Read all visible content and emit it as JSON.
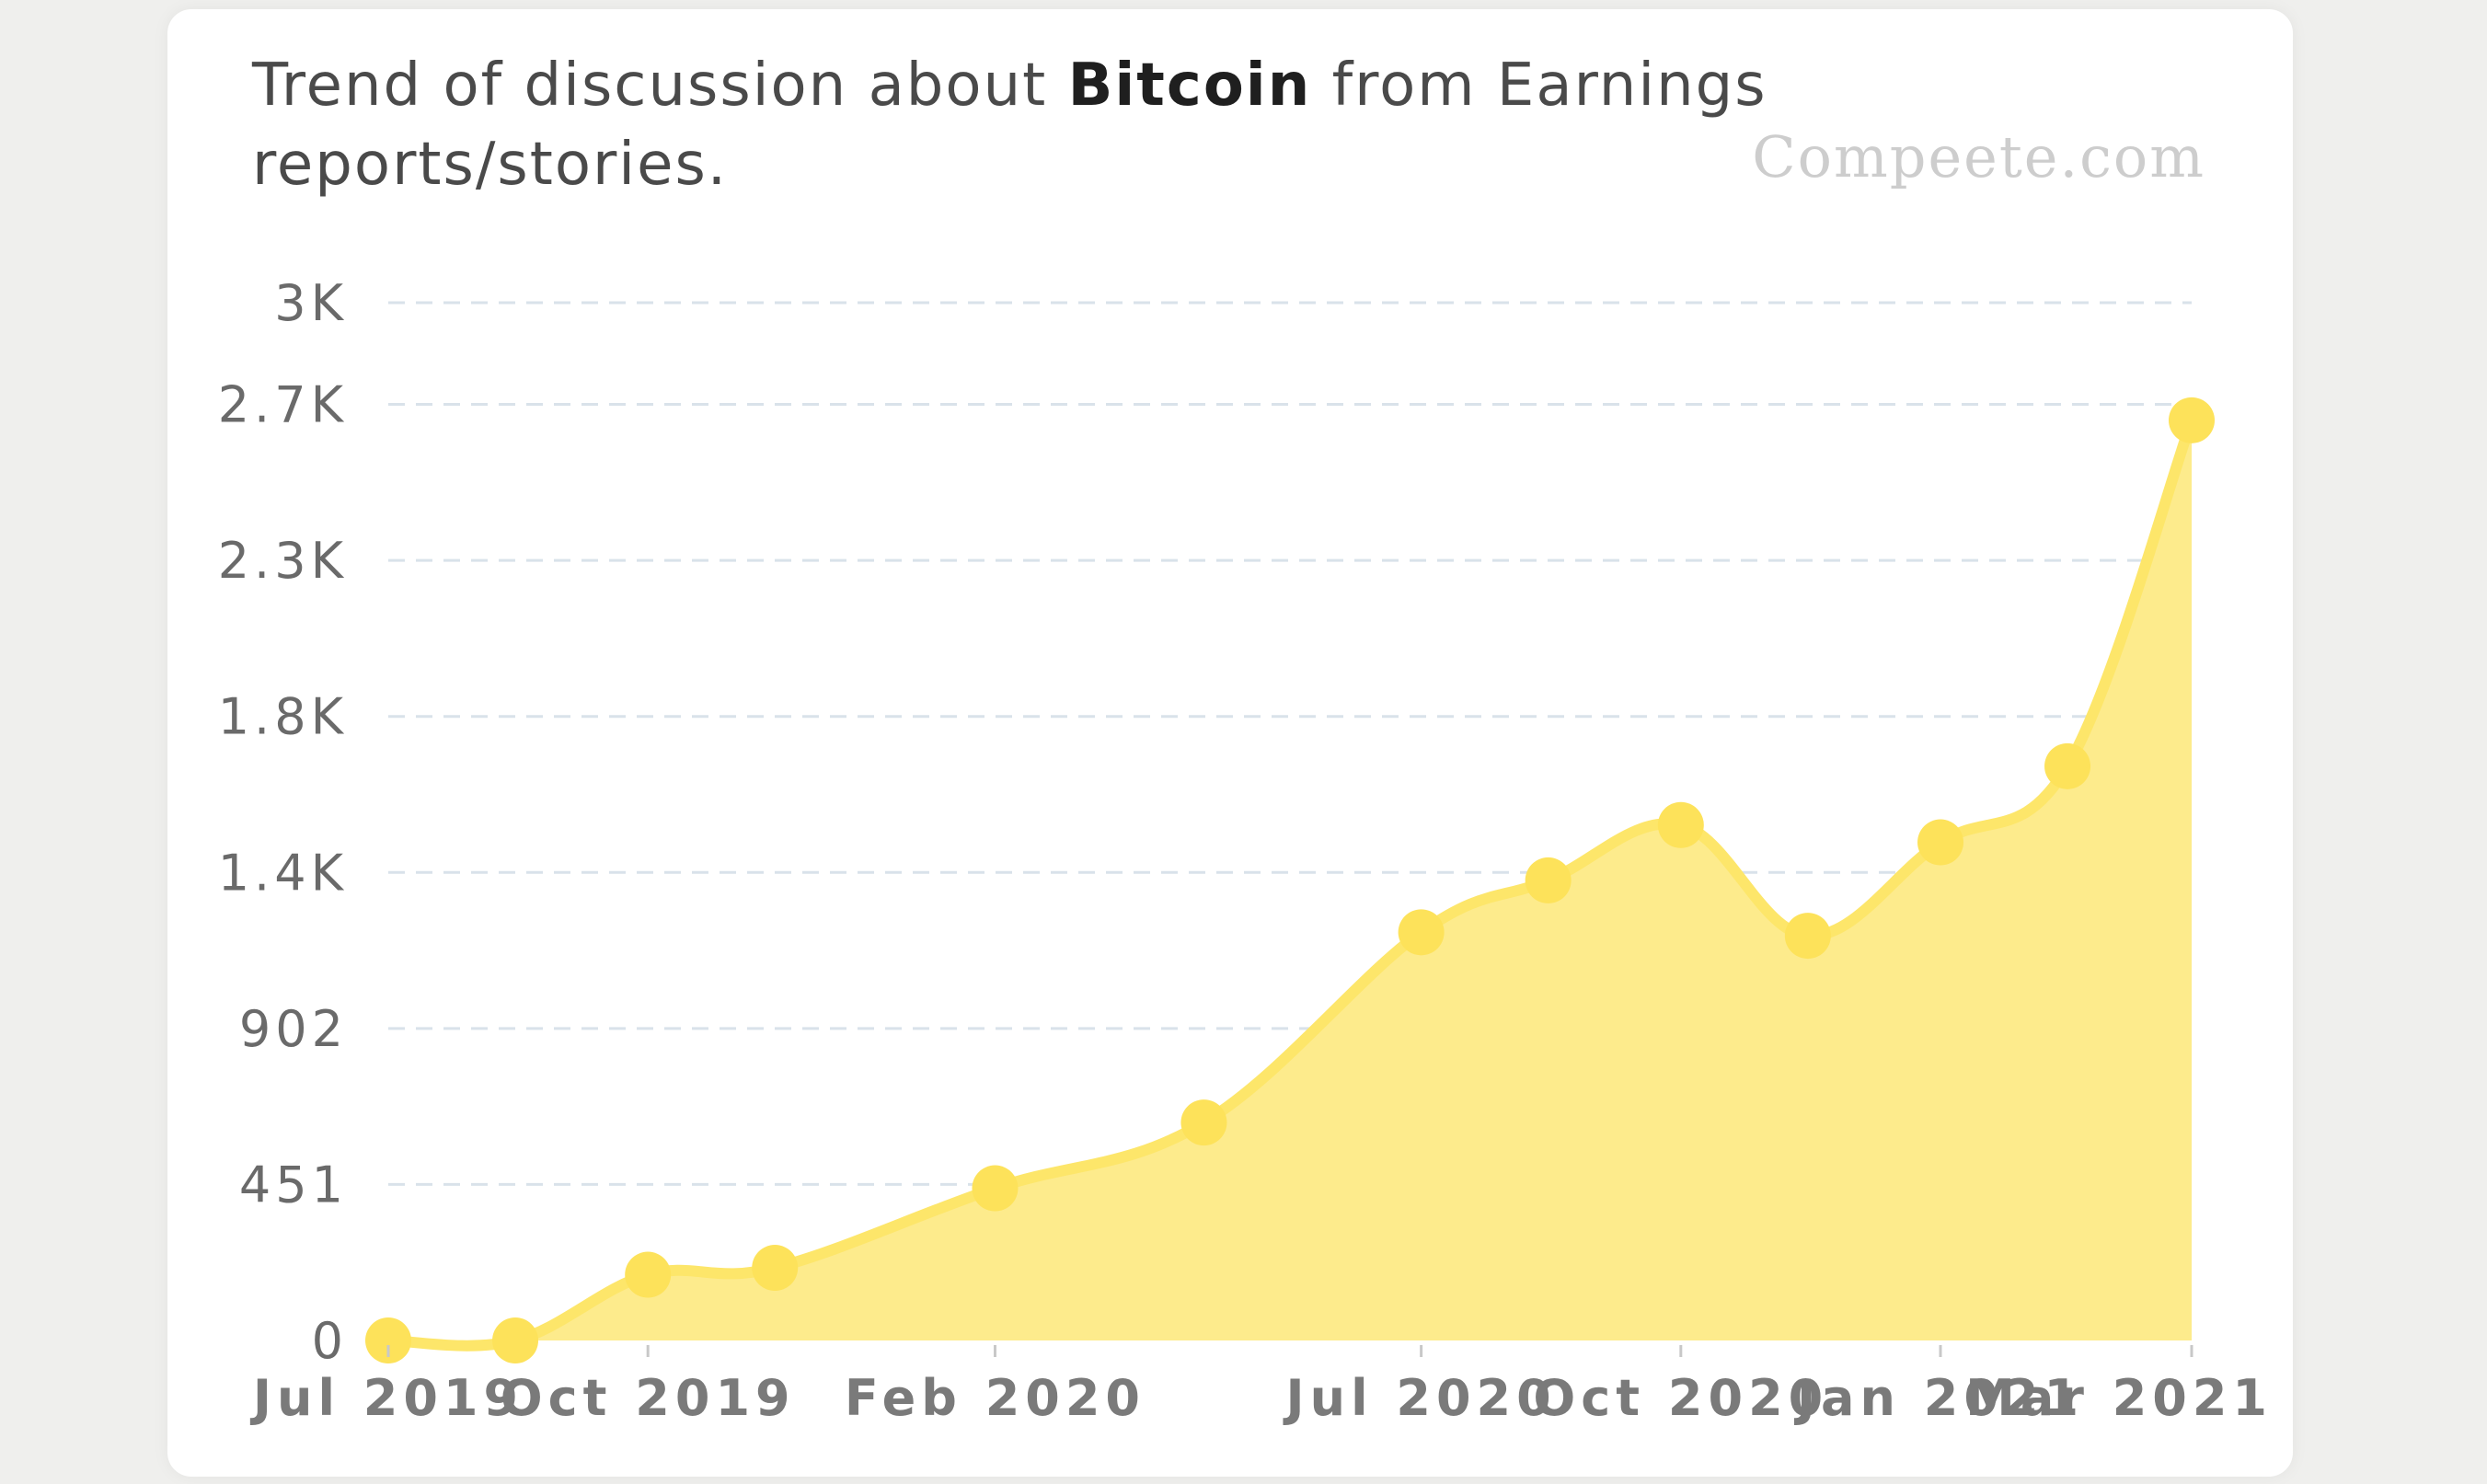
{
  "header": {
    "title_prefix": "Trend of discussion about ",
    "title_keyword": "Bitcoin",
    "title_suffix": " from Earnings reports/stories.",
    "watermark": "Compeete.com"
  },
  "colors": {
    "line": "#fde66a",
    "area": "#fdeb8c",
    "marker": "#fde25a",
    "grid": "#d9e2ea"
  },
  "chart_data": {
    "type": "area",
    "title": "Trend of discussion about Bitcoin from Earnings reports/stories.",
    "xlabel": "",
    "ylabel": "",
    "ylim": [
      0,
      3000
    ],
    "grid": true,
    "y_ticks": [
      {
        "value": 0,
        "label": "0"
      },
      {
        "value": 451,
        "label": "451"
      },
      {
        "value": 902,
        "label": "902"
      },
      {
        "value": 1353,
        "label": "1.4K"
      },
      {
        "value": 1804,
        "label": "1.8K"
      },
      {
        "value": 2255,
        "label": "2.3K"
      },
      {
        "value": 2706,
        "label": "2.7K"
      },
      {
        "value": 3000,
        "label": "3K"
      }
    ],
    "x": [
      "2019-07-01",
      "2019-08-15",
      "2019-10-01",
      "2019-11-15",
      "2020-02-01",
      "2020-04-15",
      "2020-07-01",
      "2020-08-15",
      "2020-10-01",
      "2020-11-15",
      "2021-01-01",
      "2021-02-15",
      "2021-03-31"
    ],
    "x_ticks": [
      {
        "x": "2019-07-01",
        "label": "Jul 2019"
      },
      {
        "x": "2019-10-01",
        "label": "Oct 2019"
      },
      {
        "x": "2020-02-01",
        "label": "Feb 2020"
      },
      {
        "x": "2020-07-01",
        "label": "Jul 2020"
      },
      {
        "x": "2020-10-01",
        "label": "Oct 2020"
      },
      {
        "x": "2021-01-01",
        "label": "Jan 2021"
      },
      {
        "x": "2021-03-31",
        "label": "Mar 2021"
      }
    ],
    "series": [
      {
        "values": [
          0,
          0,
          190,
          210,
          440,
          630,
          1180,
          1330,
          1490,
          1170,
          1440,
          1660,
          2660
        ]
      }
    ]
  }
}
